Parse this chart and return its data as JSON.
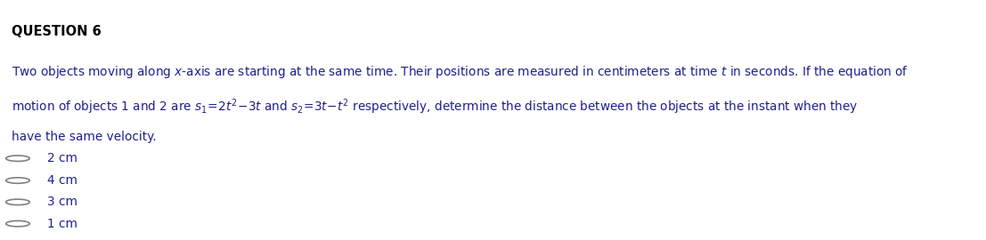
{
  "title": "QUESTION 6",
  "title_fontsize": 10.5,
  "line1": "Two objects moving along $x$-axis are starting at the same time. Their positions are measured in centimeters at time $t$ in seconds. If the equation of",
  "line2": "motion of objects 1 and 2 are $s_{\\mathregular{1}}\\,=2t^{2}-3t$ and $s_{\\mathregular{2}}=3t-t^{2}$ respectively, determine the distance between the objects at the instant when they",
  "line3": "have the same velocity.",
  "options": [
    "2 cm",
    "4 cm",
    "3 cm",
    "1 cm"
  ],
  "text_color": "#1f1f8f",
  "title_color": "#000000",
  "circle_color": "#808080",
  "bg_color": "#ffffff",
  "font_size": 9.8
}
